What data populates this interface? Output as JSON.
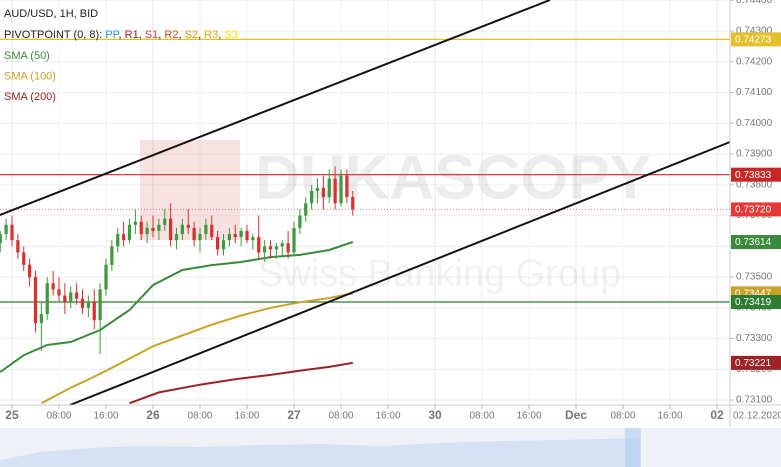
{
  "chart_data": {
    "type": "candlestick",
    "symbol": "AUD/USD, 1H, BID",
    "pivot_label": "PIVOTPOINT (0, 8):",
    "pivot_items": [
      {
        "name": "PP",
        "color": "#2196f3"
      },
      {
        "name": "R1",
        "color": "#9b1c1c"
      },
      {
        "name": "S1",
        "color": "#e53935"
      },
      {
        "name": "R2",
        "color": "#d84315"
      },
      {
        "name": "S2",
        "color": "#f08c00"
      },
      {
        "name": "R3",
        "color": "#e0ab00"
      },
      {
        "name": "S3",
        "color": "#f2e200"
      }
    ],
    "watermark": [
      "DUKASCOPY",
      "Swiss Banking Group"
    ],
    "date_label": "02.12.2020",
    "xlim": [
      -2.04,
      122.21
    ],
    "ylim": [
      0.73084,
      0.74401
    ],
    "xticks": [
      {
        "value": 0,
        "label": "25"
      },
      {
        "value": 8,
        "label": "08:00"
      },
      {
        "value": 16,
        "label": "16:00"
      },
      {
        "value": 24,
        "label": "26"
      },
      {
        "value": 32,
        "label": "08:00"
      },
      {
        "value": 40,
        "label": "16:00"
      },
      {
        "value": 48,
        "label": "27"
      },
      {
        "value": 56,
        "label": "08:00"
      },
      {
        "value": 64,
        "label": "16:00"
      },
      {
        "value": 72,
        "label": "30"
      },
      {
        "value": 80,
        "label": "08:00"
      },
      {
        "value": 88,
        "label": "16:00"
      },
      {
        "value": 96,
        "label": "Dec"
      },
      {
        "value": 104,
        "label": "08:00"
      },
      {
        "value": 112,
        "label": "16:00"
      },
      {
        "value": 120,
        "label": "02"
      }
    ],
    "yticks": [
      {
        "value": 0.744,
        "label": "0.74400"
      },
      {
        "value": 0.743,
        "label": "0.74300"
      },
      {
        "value": 0.742,
        "label": "0.74200"
      },
      {
        "value": 0.741,
        "label": "0.74100"
      },
      {
        "value": 0.74,
        "label": "0.74000"
      },
      {
        "value": 0.739,
        "label": "0.73900"
      },
      {
        "value": 0.738,
        "label": "0.73800"
      },
      {
        "value": 0.737,
        "label": "0.73700"
      },
      {
        "value": 0.736,
        "label": "0.73600"
      },
      {
        "value": 0.735,
        "label": "0.73500"
      },
      {
        "value": 0.734,
        "label": "0.73400"
      },
      {
        "value": 0.733,
        "label": "0.73300"
      },
      {
        "value": 0.732,
        "label": "0.73200"
      },
      {
        "value": 0.731,
        "label": "0.73100"
      }
    ],
    "grid": true,
    "up_color": "#3f9a3f",
    "down_color": "#d93030",
    "candles": {
      "x": [
        -2,
        -1,
        0,
        1,
        2,
        3,
        4,
        5,
        6,
        7,
        8,
        9,
        10,
        11,
        12,
        13,
        14,
        15,
        16,
        17,
        18,
        19,
        20,
        21,
        22,
        23,
        24,
        25,
        26,
        27,
        28,
        29,
        30,
        31,
        32,
        33,
        34,
        35,
        36,
        37,
        38,
        39,
        40,
        41,
        42,
        43,
        44,
        45,
        46,
        47,
        48,
        49,
        50,
        51,
        52,
        53,
        54,
        55,
        56,
        57,
        58
      ],
      "open": [
        0.7361,
        0.7364,
        0.7367,
        0.7362,
        0.7358,
        0.7354,
        0.735,
        0.7335,
        0.7338,
        0.7348,
        0.7346,
        0.7344,
        0.7342,
        0.7345,
        0.7343,
        0.734,
        0.7342,
        0.7336,
        0.7346,
        0.7354,
        0.736,
        0.7364,
        0.7362,
        0.7367,
        0.7368,
        0.7364,
        0.7366,
        0.7365,
        0.7367,
        0.7369,
        0.7362,
        0.7364,
        0.7367,
        0.7366,
        0.7362,
        0.7364,
        0.7367,
        0.7363,
        0.7359,
        0.7362,
        0.7364,
        0.7363,
        0.7365,
        0.7362,
        0.7363,
        0.7358,
        0.736,
        0.7359,
        0.736,
        0.7361,
        0.7358,
        0.7366,
        0.737,
        0.7374,
        0.7378,
        0.7379,
        0.7376,
        0.7382,
        0.7374,
        0.7383,
        0.7376
      ],
      "high": [
        0.7365,
        0.7369,
        0.737,
        0.7364,
        0.736,
        0.7356,
        0.7352,
        0.7342,
        0.735,
        0.7352,
        0.735,
        0.7348,
        0.7347,
        0.7348,
        0.7346,
        0.7344,
        0.7346,
        0.7348,
        0.7356,
        0.7362,
        0.7366,
        0.7368,
        0.7369,
        0.7372,
        0.737,
        0.7368,
        0.737,
        0.7369,
        0.7372,
        0.7374,
        0.7366,
        0.7369,
        0.7372,
        0.7368,
        0.7366,
        0.7369,
        0.737,
        0.7365,
        0.7364,
        0.7366,
        0.7367,
        0.7366,
        0.7367,
        0.7364,
        0.737,
        0.7362,
        0.7362,
        0.7361,
        0.7362,
        0.7365,
        0.7368,
        0.7372,
        0.7376,
        0.738,
        0.7382,
        0.7383,
        0.7385,
        0.7386,
        0.7385,
        0.7385,
        0.7378
      ],
      "low": [
        0.7358,
        0.7362,
        0.736,
        0.7356,
        0.7352,
        0.7347,
        0.7332,
        0.7326,
        0.7336,
        0.7344,
        0.7342,
        0.7338,
        0.734,
        0.7341,
        0.7338,
        0.7337,
        0.7333,
        0.7325,
        0.7344,
        0.7352,
        0.7358,
        0.736,
        0.7361,
        0.7364,
        0.7362,
        0.7361,
        0.7363,
        0.7362,
        0.7365,
        0.736,
        0.7359,
        0.7362,
        0.7364,
        0.736,
        0.7358,
        0.7362,
        0.7362,
        0.7357,
        0.7357,
        0.736,
        0.7361,
        0.736,
        0.7361,
        0.7359,
        0.7356,
        0.7355,
        0.7356,
        0.7356,
        0.7357,
        0.7356,
        0.7357,
        0.7364,
        0.7368,
        0.7372,
        0.7374,
        0.7372,
        0.7374,
        0.7372,
        0.7373,
        0.7374,
        0.737
      ],
      "close": [
        0.7364,
        0.7367,
        0.7362,
        0.7358,
        0.7354,
        0.735,
        0.7335,
        0.7338,
        0.7348,
        0.7346,
        0.7344,
        0.7342,
        0.7345,
        0.7343,
        0.734,
        0.7342,
        0.7336,
        0.7346,
        0.7354,
        0.736,
        0.7364,
        0.7362,
        0.7367,
        0.7368,
        0.7364,
        0.7366,
        0.7365,
        0.7367,
        0.7369,
        0.7362,
        0.7364,
        0.7367,
        0.7366,
        0.7362,
        0.7364,
        0.7367,
        0.7363,
        0.7359,
        0.7362,
        0.7364,
        0.7363,
        0.7365,
        0.7362,
        0.7363,
        0.7358,
        0.736,
        0.7359,
        0.736,
        0.7361,
        0.7358,
        0.7366,
        0.737,
        0.7374,
        0.7378,
        0.7379,
        0.7376,
        0.7382,
        0.7374,
        0.7383,
        0.7376,
        0.7372
      ]
    },
    "series": [
      {
        "name": "SMA (50)",
        "color": "#3b8a3b",
        "x": [
          -2,
          2,
          6,
          10,
          15,
          20,
          24,
          29,
          34,
          39,
          44,
          49,
          54,
          58
        ],
        "values": [
          0.73191,
          0.73246,
          0.73279,
          0.73289,
          0.73328,
          0.73393,
          0.73474,
          0.73523,
          0.73539,
          0.73549,
          0.73565,
          0.73572,
          0.73588,
          0.73614
        ]
      },
      {
        "name": "SMA (100)",
        "color": "#c9a227",
        "x": [
          5,
          10,
          15,
          20,
          24,
          29,
          34,
          39,
          44,
          49,
          54,
          58
        ],
        "values": [
          0.7309,
          0.7314,
          0.73185,
          0.73235,
          0.73275,
          0.7331,
          0.73345,
          0.73375,
          0.734,
          0.73418,
          0.73432,
          0.73447
        ]
      },
      {
        "name": "SMA (200)",
        "color": "#9b2226",
        "x": [
          20,
          25,
          32,
          38,
          44,
          50,
          54,
          58
        ],
        "values": [
          0.7309,
          0.73125,
          0.7315,
          0.73168,
          0.73182,
          0.73198,
          0.73208,
          0.73221
        ]
      }
    ],
    "levels": [
      {
        "value": 0.74273,
        "color": "#e3bf2a"
      },
      {
        "value": 0.73833,
        "color": "#c62828"
      },
      {
        "value": 0.73419,
        "color": "#2e7d32"
      }
    ],
    "current_price": {
      "value": 0.7372,
      "label": "0.73720",
      "color": "#e53935"
    }
  }
}
